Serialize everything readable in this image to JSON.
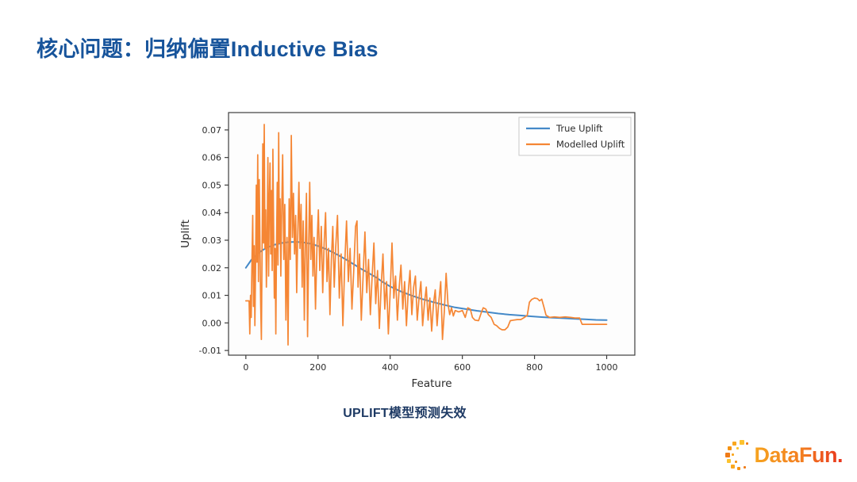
{
  "slide": {
    "title": "核心问题：归纳偏置Inductive Bias",
    "caption": "UPLIFT模型预测失效"
  },
  "logo": {
    "text": "DataFun."
  },
  "colors": {
    "title_blue": "#17549b",
    "caption_navy": "#1e3a64",
    "true_uplift_line": "#4489c8",
    "modelled_uplift_line": "#f58634",
    "logo_gradient_start": "#f6a41f",
    "logo_gradient_end": "#e8321c"
  },
  "chart_data": {
    "type": "line",
    "title": "",
    "xlabel": "Feature",
    "ylabel": "Uplift",
    "xlim": [
      -48,
      1078
    ],
    "ylim": [
      -0.0117,
      0.0763
    ],
    "grid": false,
    "legend_position": "upper right",
    "xticks": [
      0,
      200,
      400,
      600,
      800,
      1000
    ],
    "yticks": [
      0.07,
      0.06,
      0.05,
      0.04,
      0.03,
      0.02,
      0.01,
      0.0,
      -0.01
    ],
    "ytick_labels": [
      "0.07",
      "0.06",
      "0.05",
      "0.04",
      "0.03",
      "0.02",
      "0.01",
      "0.00",
      "-0.01"
    ],
    "series": [
      {
        "name": "True Uplift",
        "color": "#4489c8",
        "width": 2,
        "points": [
          [
            0,
            0.02
          ],
          [
            15,
            0.0228
          ],
          [
            30,
            0.0248
          ],
          [
            45,
            0.0263
          ],
          [
            60,
            0.0274
          ],
          [
            80,
            0.0284
          ],
          [
            100,
            0.029
          ],
          [
            120,
            0.0293
          ],
          [
            140,
            0.0294
          ],
          [
            160,
            0.0292
          ],
          [
            180,
            0.0287
          ],
          [
            200,
            0.0279
          ],
          [
            220,
            0.0269
          ],
          [
            240,
            0.0257
          ],
          [
            260,
            0.0243
          ],
          [
            280,
            0.0228
          ],
          [
            300,
            0.0212
          ],
          [
            320,
            0.0196
          ],
          [
            340,
            0.0181
          ],
          [
            360,
            0.0166
          ],
          [
            380,
            0.0148
          ],
          [
            400,
            0.0132
          ],
          [
            430,
            0.0114
          ],
          [
            460,
            0.0099
          ],
          [
            490,
            0.0086
          ],
          [
            520,
            0.0075
          ],
          [
            550,
            0.0065
          ],
          [
            580,
            0.0056
          ],
          [
            610,
            0.005
          ],
          [
            640,
            0.0044
          ],
          [
            670,
            0.0039
          ],
          [
            700,
            0.0034
          ],
          [
            730,
            0.003
          ],
          [
            760,
            0.0027
          ],
          [
            790,
            0.0024
          ],
          [
            820,
            0.0021
          ],
          [
            850,
            0.0019
          ],
          [
            880,
            0.0017
          ],
          [
            910,
            0.0015
          ],
          [
            940,
            0.0013
          ],
          [
            970,
            0.0011
          ],
          [
            1000,
            0.001
          ]
        ]
      },
      {
        "name": "Modelled Uplift",
        "color": "#f58634",
        "width": 1.7,
        "points": [
          [
            0,
            0.008
          ],
          [
            9,
            0.008
          ],
          [
            11,
            -0.004
          ],
          [
            13,
            0.01
          ],
          [
            15,
            0.002
          ],
          [
            17,
            0.024
          ],
          [
            19,
            0.039
          ],
          [
            21,
            0.006
          ],
          [
            23,
            0.028
          ],
          [
            25,
            -0.001
          ],
          [
            27,
            0.021
          ],
          [
            29,
            0.05
          ],
          [
            31,
            0.022
          ],
          [
            33,
            0.061
          ],
          [
            35,
            0.015
          ],
          [
            37,
            0.052
          ],
          [
            39,
            0.029
          ],
          [
            41,
            0.007
          ],
          [
            43,
            -0.006
          ],
          [
            45,
            0.027
          ],
          [
            47,
            0.065
          ],
          [
            49,
            0.029
          ],
          [
            51,
            0.072
          ],
          [
            53,
            0.027
          ],
          [
            55,
            0.041
          ],
          [
            57,
            0.013
          ],
          [
            59,
            0.031
          ],
          [
            61,
            0.06
          ],
          [
            63,
            0.017
          ],
          [
            65,
            0.044
          ],
          [
            67,
            0.058
          ],
          [
            69,
            0.025
          ],
          [
            71,
            0.048
          ],
          [
            73,
            0.019
          ],
          [
            75,
            0.063
          ],
          [
            77,
            0.035
          ],
          [
            79,
            0.009
          ],
          [
            81,
            0.027
          ],
          [
            83,
            -0.004
          ],
          [
            85,
            0.029
          ],
          [
            87,
            0.051
          ],
          [
            89,
            0.021
          ],
          [
            91,
            0.069
          ],
          [
            93,
            0.029
          ],
          [
            95,
            0.045
          ],
          [
            97,
            0.017
          ],
          [
            99,
            0.037
          ],
          [
            102,
            0.061
          ],
          [
            105,
            0.023
          ],
          [
            108,
            0.043
          ],
          [
            111,
            0.001
          ],
          [
            114,
            0.031
          ],
          [
            117,
            -0.008
          ],
          [
            120,
            0.045
          ],
          [
            123,
            0.023
          ],
          [
            126,
            0.068
          ],
          [
            129,
            0.031
          ],
          [
            132,
            0.047
          ],
          [
            135,
            0.025
          ],
          [
            138,
            0.039
          ],
          [
            141,
            0.011
          ],
          [
            144,
            0.033
          ],
          [
            147,
            0.051
          ],
          [
            150,
            0.027
          ],
          [
            153,
            0.043
          ],
          [
            156,
            0.013
          ],
          [
            159,
            0.037
          ],
          [
            162,
            0.001
          ],
          [
            165,
            0.029
          ],
          [
            168,
            0.047
          ],
          [
            171,
            -0.005
          ],
          [
            174,
            0.025
          ],
          [
            177,
            0.051
          ],
          [
            180,
            0.023
          ],
          [
            183,
            0.039
          ],
          [
            186,
            0.017
          ],
          [
            189,
            0.031
          ],
          [
            193,
            0.005
          ],
          [
            197,
            0.027
          ],
          [
            201,
            0.041
          ],
          [
            205,
            0.019
          ],
          [
            209,
            0.035
          ],
          [
            213,
            0.011
          ],
          [
            217,
            0.029
          ],
          [
            221,
            0.04
          ],
          [
            225,
            0.015
          ],
          [
            229,
            0.027
          ],
          [
            233,
            0.003
          ],
          [
            237,
            0.023
          ],
          [
            241,
            0.035
          ],
          [
            245,
            0.013
          ],
          [
            249,
            0.027
          ],
          [
            254,
            0.039
          ],
          [
            259,
            0.009
          ],
          [
            264,
            0.025
          ],
          [
            269,
            -0.001
          ],
          [
            274,
            0.021
          ],
          [
            279,
            0.037
          ],
          [
            284,
            0.015
          ],
          [
            289,
            0.027
          ],
          [
            294,
            0.005
          ],
          [
            299,
            0.019
          ],
          [
            304,
            0.035
          ],
          [
            308,
            0.037
          ],
          [
            311,
            0.013
          ],
          [
            315,
            0.025
          ],
          [
            320,
            0.001
          ],
          [
            325,
            0.017
          ],
          [
            330,
            0.033
          ],
          [
            335,
            0.011
          ],
          [
            340,
            0.023
          ],
          [
            345,
            0.003
          ],
          [
            350,
            0.017
          ],
          [
            355,
            0.029
          ],
          [
            360,
            0.007
          ],
          [
            365,
            0.019
          ],
          [
            370,
            -0.002
          ],
          [
            375,
            0.013
          ],
          [
            380,
            0.025
          ],
          [
            385,
            0.005
          ],
          [
            390,
            0.015
          ],
          [
            395,
            -0.004
          ],
          [
            400,
            0.011
          ],
          [
            405,
            0.029
          ],
          [
            410,
            0.009
          ],
          [
            415,
            0.017
          ],
          [
            420,
            0.001
          ],
          [
            425,
            0.013
          ],
          [
            430,
            0.021
          ],
          [
            435,
            0.005
          ],
          [
            440,
            0.015
          ],
          [
            445,
            -0.001
          ],
          [
            450,
            0.011
          ],
          [
            455,
            0.019
          ],
          [
            460,
            0.003
          ],
          [
            465,
            0.013
          ],
          [
            470,
            0.017
          ],
          [
            475,
            0.001
          ],
          [
            480,
            0.009
          ],
          [
            485,
            0.015
          ],
          [
            490,
            -0.001
          ],
          [
            495,
            0.007
          ],
          [
            500,
            0.013
          ],
          [
            505,
            0.001
          ],
          [
            510,
            0.009
          ],
          [
            515,
            -0.003
          ],
          [
            520,
            0.007
          ],
          [
            525,
            0.012
          ],
          [
            530,
            -0.001
          ],
          [
            535,
            0.008
          ],
          [
            540,
            0.015
          ],
          [
            545,
            -0.006
          ],
          [
            550,
            0.004
          ],
          [
            555,
            0.018
          ],
          [
            560,
            0.007
          ],
          [
            565,
            0.003
          ],
          [
            570,
            0.0055
          ],
          [
            575,
            0.0025
          ],
          [
            580,
            0.0045
          ],
          [
            590,
            0.004
          ],
          [
            600,
            0.0045
          ],
          [
            608,
            0.002
          ],
          [
            615,
            0.0055
          ],
          [
            622,
            0.005
          ],
          [
            628,
            0.002
          ],
          [
            635,
            0.001
          ],
          [
            645,
            0.0008
          ],
          [
            652,
            0.0035
          ],
          [
            658,
            0.0055
          ],
          [
            665,
            0.005
          ],
          [
            672,
            0.003
          ],
          [
            680,
            0.002
          ],
          [
            688,
            -0.0005
          ],
          [
            695,
            -0.001
          ],
          [
            703,
            -0.002
          ],
          [
            710,
            -0.0025
          ],
          [
            718,
            -0.0025
          ],
          [
            726,
            -0.0015
          ],
          [
            733,
            0.0008
          ],
          [
            742,
            0.001
          ],
          [
            752,
            0.0012
          ],
          [
            762,
            0.0012
          ],
          [
            772,
            0.002
          ],
          [
            780,
            0.0028
          ],
          [
            786,
            0.0075
          ],
          [
            792,
            0.0085
          ],
          [
            800,
            0.009
          ],
          [
            808,
            0.0088
          ],
          [
            814,
            0.008
          ],
          [
            820,
            0.0086
          ],
          [
            826,
            0.0058
          ],
          [
            832,
            0.0028
          ],
          [
            842,
            0.002
          ],
          [
            855,
            0.0022
          ],
          [
            870,
            0.002
          ],
          [
            885,
            0.0022
          ],
          [
            900,
            0.002
          ],
          [
            912,
            0.0018
          ],
          [
            925,
            0.0018
          ],
          [
            932,
            -0.0005
          ],
          [
            945,
            -0.0005
          ],
          [
            965,
            -0.0005
          ],
          [
            985,
            -0.0005
          ],
          [
            1000,
            -0.0005
          ]
        ]
      }
    ]
  }
}
